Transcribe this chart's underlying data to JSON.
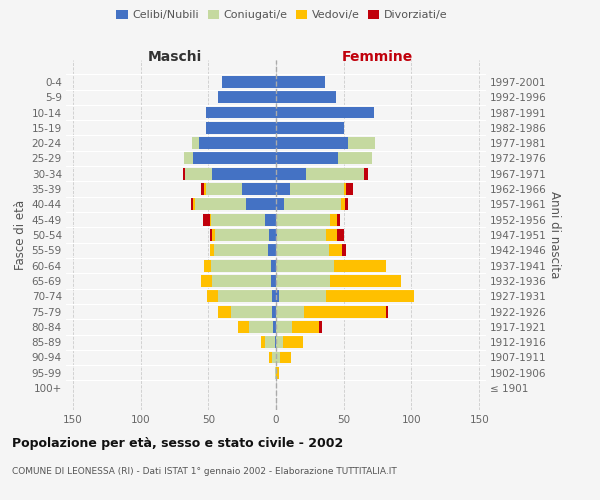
{
  "age_groups": [
    "100+",
    "95-99",
    "90-94",
    "85-89",
    "80-84",
    "75-79",
    "70-74",
    "65-69",
    "60-64",
    "55-59",
    "50-54",
    "45-49",
    "40-44",
    "35-39",
    "30-34",
    "25-29",
    "20-24",
    "15-19",
    "10-14",
    "5-9",
    "0-4"
  ],
  "birth_years": [
    "≤ 1901",
    "1902-1906",
    "1907-1911",
    "1912-1916",
    "1917-1921",
    "1922-1926",
    "1927-1931",
    "1932-1936",
    "1937-1941",
    "1942-1946",
    "1947-1951",
    "1952-1956",
    "1957-1961",
    "1962-1966",
    "1967-1971",
    "1972-1976",
    "1977-1981",
    "1982-1986",
    "1987-1991",
    "1992-1996",
    "1997-2001"
  ],
  "male_celibi": [
    0,
    0,
    0,
    1,
    2,
    3,
    3,
    4,
    4,
    6,
    5,
    8,
    22,
    25,
    47,
    61,
    57,
    52,
    52,
    43,
    40
  ],
  "male_coniugati": [
    0,
    1,
    3,
    7,
    18,
    30,
    40,
    43,
    44,
    40,
    40,
    40,
    38,
    27,
    20,
    7,
    5,
    0,
    0,
    0,
    0
  ],
  "male_vedovi": [
    0,
    0,
    2,
    3,
    8,
    10,
    8,
    8,
    5,
    3,
    2,
    1,
    1,
    1,
    0,
    0,
    0,
    0,
    0,
    0,
    0
  ],
  "male_divorziati": [
    0,
    0,
    0,
    0,
    0,
    0,
    0,
    0,
    0,
    0,
    2,
    5,
    2,
    2,
    2,
    0,
    0,
    0,
    0,
    0,
    0
  ],
  "female_celibi": [
    0,
    0,
    0,
    0,
    0,
    0,
    2,
    0,
    0,
    0,
    1,
    0,
    6,
    10,
    22,
    46,
    53,
    50,
    72,
    44,
    36
  ],
  "female_coniugati": [
    0,
    0,
    3,
    5,
    12,
    21,
    35,
    40,
    43,
    39,
    36,
    40,
    42,
    40,
    43,
    25,
    20,
    0,
    0,
    0,
    0
  ],
  "female_vedovi": [
    0,
    2,
    8,
    15,
    20,
    60,
    65,
    52,
    38,
    10,
    8,
    5,
    3,
    2,
    0,
    0,
    0,
    0,
    0,
    0,
    0
  ],
  "female_divorziati": [
    0,
    0,
    0,
    0,
    2,
    2,
    0,
    0,
    0,
    3,
    5,
    2,
    2,
    5,
    3,
    0,
    0,
    0,
    0,
    0,
    0
  ],
  "colors": {
    "celibi": "#4472c4",
    "coniugati": "#c5d9a0",
    "vedovi": "#ffc000",
    "divorziati": "#c0000b"
  },
  "xlim": 155,
  "title": "Popolazione per età, sesso e stato civile - 2002",
  "subtitle": "COMUNE DI LEONESSA (RI) - Dati ISTAT 1° gennaio 2002 - Elaborazione TUTTITALIA.IT",
  "ylabel_left": "Fasce di età",
  "ylabel_right": "Anni di nascita",
  "xlabel_left": "Maschi",
  "xlabel_right": "Femmine",
  "legend_labels": [
    "Celibi/Nubili",
    "Coniugati/e",
    "Vedovi/e",
    "Divorziati/e"
  ],
  "bg_color": "#f5f5f5",
  "xticks": [
    -150,
    -100,
    -50,
    0,
    50,
    100,
    150
  ],
  "xtick_labels": [
    "150",
    "100",
    "50",
    "0",
    "50",
    "100",
    "150"
  ]
}
